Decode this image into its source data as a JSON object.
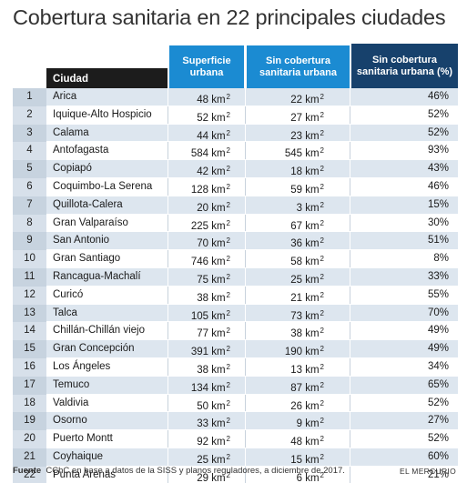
{
  "title": "Cobertura sanitaria en 22 principales ciudades",
  "headers": {
    "ciudad": "Ciudad",
    "superficie": [
      "Superficie",
      "urbana"
    ],
    "sin_cobertura": [
      "Sin cobertura",
      "sanitaria urbana"
    ],
    "sin_cobertura_pct": [
      "Sin cobertura",
      "sanitaria urbana (%)"
    ]
  },
  "unit": "km",
  "unit_exp": "2",
  "rows": [
    {
      "n": "1",
      "city": "Arica",
      "sup": "48",
      "sin": "22",
      "pct": "46%"
    },
    {
      "n": "2",
      "city": "Iquique-Alto Hospicio",
      "sup": "52",
      "sin": "27",
      "pct": "52%"
    },
    {
      "n": "3",
      "city": "Calama",
      "sup": "44",
      "sin": "23",
      "pct": "52%"
    },
    {
      "n": "4",
      "city": "Antofagasta",
      "sup": "584",
      "sin": "545",
      "pct": "93%"
    },
    {
      "n": "5",
      "city": "Copiapó",
      "sup": "42",
      "sin": "18",
      "pct": "43%"
    },
    {
      "n": "6",
      "city": "Coquimbo-La Serena",
      "sup": "128",
      "sin": "59",
      "pct": "46%"
    },
    {
      "n": "7",
      "city": "Quillota-Calera",
      "sup": "20",
      "sin": "3",
      "pct": "15%"
    },
    {
      "n": "8",
      "city": "Gran Valparaíso",
      "sup": "225",
      "sin": "67",
      "pct": "30%"
    },
    {
      "n": "9",
      "city": "San Antonio",
      "sup": "70",
      "sin": "36",
      "pct": "51%"
    },
    {
      "n": "10",
      "city": "Gran Santiago",
      "sup": "746",
      "sin": "58",
      "pct": "8%"
    },
    {
      "n": "11",
      "city": "Rancagua-Machalí",
      "sup": "75",
      "sin": "25",
      "pct": "33%"
    },
    {
      "n": "12",
      "city": "Curicó",
      "sup": "38",
      "sin": "21",
      "pct": "55%"
    },
    {
      "n": "13",
      "city": "Talca",
      "sup": "105",
      "sin": "73",
      "pct": "70%"
    },
    {
      "n": "14",
      "city": "Chillán-Chillán viejo",
      "sup": "77",
      "sin": "38",
      "pct": "49%"
    },
    {
      "n": "15",
      "city": "Gran Concepción",
      "sup": "391",
      "sin": "190",
      "pct": "49%"
    },
    {
      "n": "16",
      "city": "Los Ángeles",
      "sup": "38",
      "sin": "13",
      "pct": "34%"
    },
    {
      "n": "17",
      "city": "Temuco",
      "sup": "134",
      "sin": "87",
      "pct": "65%"
    },
    {
      "n": "18",
      "city": "Valdivia",
      "sup": "50",
      "sin": "26",
      "pct": "52%"
    },
    {
      "n": "19",
      "city": "Osorno",
      "sup": "33",
      "sin": "9",
      "pct": "27%"
    },
    {
      "n": "20",
      "city": "Puerto Montt",
      "sup": "92",
      "sin": "48",
      "pct": "52%"
    },
    {
      "n": "21",
      "city": "Coyhaique",
      "sup": "25",
      "sin": "15",
      "pct": "60%"
    },
    {
      "n": "22",
      "city": "Punta Arenas",
      "sup": "29",
      "sin": "6",
      "pct": "21%"
    }
  ],
  "footer": {
    "label": "Fuente",
    "text": "CChC en base a datos de la SISS y planos reguladores, a diciembre de 2017.",
    "brand": "EL MERCURIO"
  },
  "colors": {
    "header_blue": "#1b8bd2",
    "header_dark_blue": "#17416c",
    "header_black": "#1c1c1c",
    "row_stripe": "#dde6ef"
  }
}
